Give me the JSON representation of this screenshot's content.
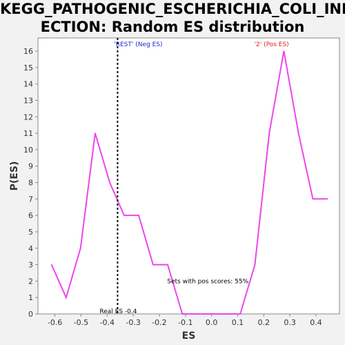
{
  "title_line1": "KEGG_PATHOGENIC_ESCHERICHIA_COLI_INF",
  "title_line2": "ECTION: Random ES distribution",
  "chart_data": {
    "type": "line",
    "xlabel": "ES",
    "ylabel": "P(ES)",
    "xlim": [
      -0.665,
      0.49
    ],
    "ylim": [
      0,
      16.8
    ],
    "xticks": [
      -0.6,
      -0.5,
      -0.4,
      -0.3,
      -0.2,
      -0.1,
      0.0,
      0.1,
      0.2,
      0.3,
      0.4
    ],
    "xtick_labels": [
      "-0.6",
      "-0.5",
      "-0.4",
      "-0.3",
      "-0.2",
      "-0.1",
      "0.0",
      "0.1",
      "0.2",
      "0.3",
      "0.4"
    ],
    "yticks": [
      0,
      1,
      2,
      3,
      4,
      5,
      6,
      7,
      8,
      9,
      10,
      11,
      12,
      13,
      14,
      15,
      16
    ],
    "series": [
      {
        "color": "#ee44ee",
        "x": [
          -0.613,
          -0.557,
          -0.502,
          -0.446,
          -0.39,
          -0.335,
          -0.279,
          -0.224,
          -0.168,
          -0.112,
          -0.057,
          -0.001,
          0.054,
          0.11,
          0.166,
          0.221,
          0.277,
          0.333,
          0.388,
          0.444
        ],
        "y": [
          3,
          1,
          4,
          11,
          8,
          6,
          6,
          3,
          3,
          0,
          0,
          0,
          0,
          0,
          3,
          11,
          16,
          11,
          7,
          7
        ]
      }
    ],
    "real_es": -0.36,
    "real_es_label": "Real ES -0.4",
    "neg_label": "'REST' (Neg ES)",
    "neg_color": "#2222cc",
    "pos_label": "'2' (Pos ES)",
    "pos_color": "#dd2222",
    "annotation": "Sets with pos scores: 55%"
  }
}
